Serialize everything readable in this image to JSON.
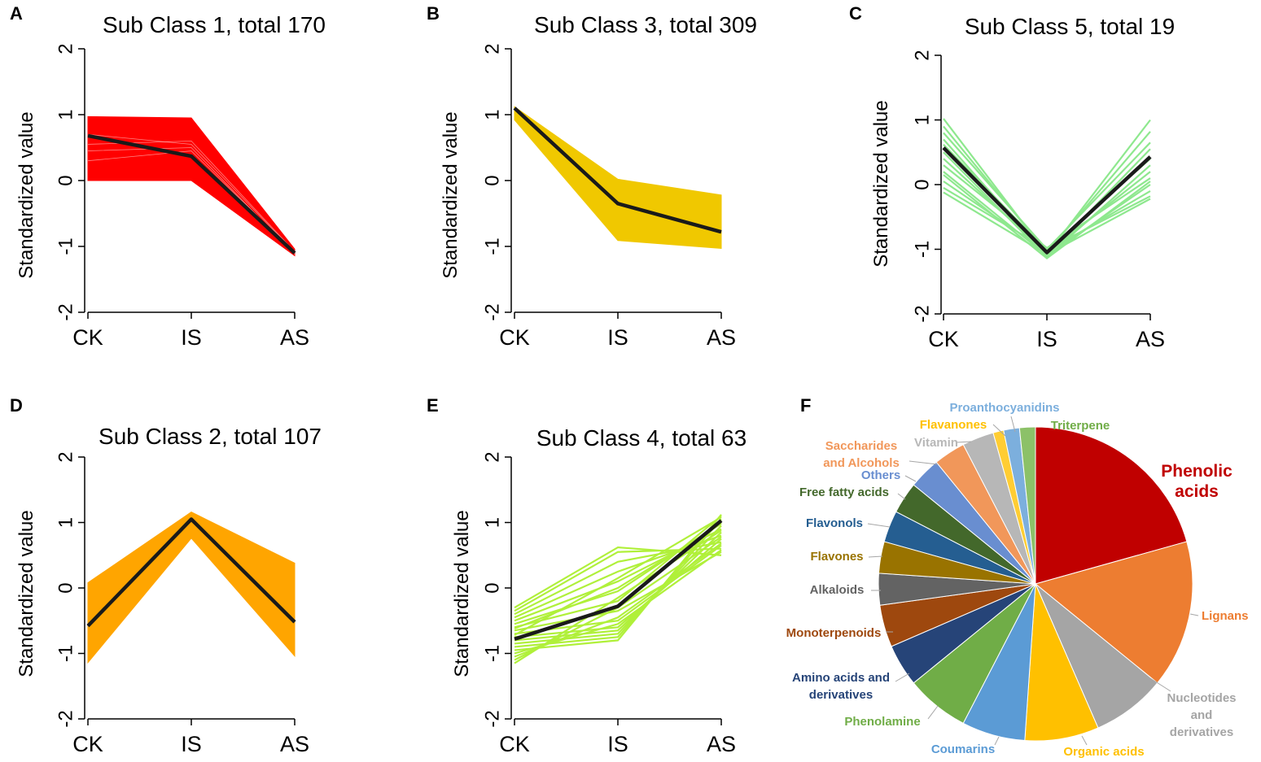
{
  "chart_data": [
    {
      "id": "A",
      "panel_letter": "A",
      "type": "line",
      "title": "Sub Class 1, total 170",
      "ylabel": "Standardized value",
      "xlabel": "",
      "categories": [
        "CK",
        "IS",
        "AS"
      ],
      "ylim": [
        -2,
        2
      ],
      "yticks": [
        "2",
        "1",
        "0",
        "-1",
        "-2"
      ],
      "color": "#ff0000",
      "band": {
        "min": [
          0.0,
          0.0,
          -1.14
        ],
        "max": [
          0.97,
          0.95,
          -1.04
        ]
      },
      "profiles": [
        [
          0.3,
          0.45,
          -1.1
        ],
        [
          0.55,
          0.6,
          -1.08
        ],
        [
          0.45,
          0.5,
          -1.12
        ],
        [
          0.7,
          0.55,
          -1.09
        ]
      ],
      "mean": [
        0.68,
        0.37,
        -1.1
      ]
    },
    {
      "id": "B",
      "panel_letter": "B",
      "type": "line",
      "title": "Sub Class 3, total 309",
      "ylabel": "Standardized value",
      "xlabel": "",
      "categories": [
        "CK",
        "IS",
        "AS"
      ],
      "ylim": [
        -2,
        2
      ],
      "yticks": [
        "2",
        "1",
        "0",
        "-1",
        "-2"
      ],
      "color": "#f0c800",
      "band": {
        "min": [
          0.92,
          -0.91,
          -1.03
        ],
        "max": [
          1.12,
          0.02,
          -0.22
        ]
      },
      "profiles": [],
      "mean": [
        1.1,
        -0.35,
        -0.78
      ]
    },
    {
      "id": "C",
      "panel_letter": "C",
      "type": "line",
      "title": "Sub Class 5, total 19",
      "ylabel": "Standardized value",
      "xlabel": "",
      "categories": [
        "CK",
        "IS",
        "AS"
      ],
      "ylim": [
        -2,
        2
      ],
      "yticks": [
        "2",
        "1",
        "0",
        "-1",
        "-2"
      ],
      "color": "#8ee88e",
      "band": null,
      "profiles": [
        [
          1.02,
          -1.08,
          1.0
        ],
        [
          0.9,
          -1.05,
          0.82
        ],
        [
          0.8,
          -1.0,
          0.65
        ],
        [
          0.7,
          -1.1,
          0.55
        ],
        [
          0.62,
          -1.02,
          0.4
        ],
        [
          0.5,
          -1.12,
          0.3
        ],
        [
          0.4,
          -1.06,
          0.2
        ],
        [
          0.3,
          -0.98,
          0.1
        ],
        [
          0.2,
          -1.1,
          0.0
        ],
        [
          0.05,
          -1.04,
          -0.1
        ],
        [
          -0.05,
          -1.0,
          -0.18
        ],
        [
          -0.12,
          -1.08,
          -0.22
        ],
        [
          0.15,
          -1.14,
          0.05
        ]
      ],
      "mean": [
        0.57,
        -1.05,
        0.43
      ]
    },
    {
      "id": "D",
      "panel_letter": "D",
      "type": "line",
      "title": "Sub Class 2, total 107",
      "ylabel": "Standardized value",
      "xlabel": "",
      "categories": [
        "CK",
        "IS",
        "AS"
      ],
      "ylim": [
        -2,
        2
      ],
      "yticks": [
        "2",
        "1",
        "0",
        "-1",
        "-2"
      ],
      "color": "#ffa500",
      "band": {
        "min": [
          -1.14,
          0.76,
          -1.04
        ],
        "max": [
          0.08,
          1.16,
          0.38
        ]
      },
      "profiles": [],
      "mean": [
        -0.58,
        1.05,
        -0.52
      ]
    },
    {
      "id": "E",
      "panel_letter": "E",
      "type": "line",
      "title": "Sub Class 4, total 63",
      "ylabel": "Standardized value",
      "xlabel": "",
      "categories": [
        "CK",
        "IS",
        "AS"
      ],
      "ylim": [
        -2,
        2
      ],
      "yticks": [
        "2",
        "1",
        "0",
        "-1",
        "-2"
      ],
      "color": "#b0f03a",
      "band": null,
      "profiles": [
        [
          -0.3,
          0.62,
          0.5
        ],
        [
          -0.35,
          0.55,
          0.6
        ],
        [
          -0.4,
          0.4,
          0.7
        ],
        [
          -0.45,
          0.25,
          0.8
        ],
        [
          -0.5,
          0.1,
          0.9
        ],
        [
          -0.55,
          -0.05,
          1.0
        ],
        [
          -0.6,
          -0.2,
          1.1
        ],
        [
          -0.65,
          -0.35,
          0.55
        ],
        [
          -0.7,
          -0.5,
          0.65
        ],
        [
          -0.75,
          -0.6,
          0.75
        ],
        [
          -0.8,
          -0.65,
          0.85
        ],
        [
          -0.85,
          -0.7,
          0.95
        ],
        [
          -0.9,
          -0.75,
          1.05
        ],
        [
          -0.95,
          -0.8,
          1.12
        ],
        [
          -1.0,
          -0.55,
          0.58
        ],
        [
          -1.05,
          -0.45,
          0.68
        ],
        [
          -1.1,
          -0.3,
          0.78
        ],
        [
          -1.15,
          -0.15,
          0.88
        ],
        [
          -0.62,
          0.0,
          0.98
        ],
        [
          -0.72,
          0.15,
          1.08
        ]
      ],
      "mean": [
        -0.78,
        -0.28,
        1.03
      ]
    },
    {
      "id": "F",
      "panel_letter": "F",
      "type": "pie",
      "title": "",
      "slices": [
        {
          "label": "Phenolic acids",
          "value": 19.0,
          "color": "#c00000",
          "label_color": "#c00000"
        },
        {
          "label": "Lignans",
          "value": 14.0,
          "color": "#ed7d31",
          "label_color": "#ed7d31"
        },
        {
          "label": "Nucleotides and derivatives",
          "value": 7.0,
          "color": "#a5a5a5",
          "label_color": "#a5a5a5"
        },
        {
          "label": "Organic acids",
          "value": 7.0,
          "color": "#ffc000",
          "label_color": "#ffc000"
        },
        {
          "label": "Coumarins",
          "value": 6.0,
          "color": "#5b9bd5",
          "label_color": "#5b9bd5"
        },
        {
          "label": "Phenolamine",
          "value": 6.0,
          "color": "#70ad47",
          "label_color": "#70ad47"
        },
        {
          "label": "Amino acids and derivatives",
          "value": 4.0,
          "color": "#264478",
          "label_color": "#264478"
        },
        {
          "label": "Monoterpenoids",
          "value": 4.0,
          "color": "#9e480e",
          "label_color": "#9e480e"
        },
        {
          "label": "Alkaloids",
          "value": 3.0,
          "color": "#636363",
          "label_color": "#636363"
        },
        {
          "label": "Flavones",
          "value": 3.0,
          "color": "#997300",
          "label_color": "#997300"
        },
        {
          "label": "Flavonols",
          "value": 3.0,
          "color": "#255e91",
          "label_color": "#255e91"
        },
        {
          "label": "Free fatty acids",
          "value": 3.0,
          "color": "#43682b",
          "label_color": "#43682b"
        },
        {
          "label": "Others",
          "value": 3.0,
          "color": "#698ed0",
          "label_color": "#698ed0"
        },
        {
          "label": "Saccharides and Alcohols",
          "value": 3.0,
          "color": "#f1975a",
          "label_color": "#f1975a"
        },
        {
          "label": "Vitamin",
          "value": 3.0,
          "color": "#b7b7b7",
          "label_color": "#b7b7b7"
        },
        {
          "label": "Flavanones",
          "value": 1.0,
          "color": "#ffcd33",
          "label_color": "#ffc000"
        },
        {
          "label": "Proanthocyanidins",
          "value": 1.5,
          "color": "#7cafdd",
          "label_color": "#7cafdd"
        },
        {
          "label": "Triterpene",
          "value": 1.5,
          "color": "#8cc168",
          "label_color": "#70ad47"
        }
      ]
    }
  ]
}
